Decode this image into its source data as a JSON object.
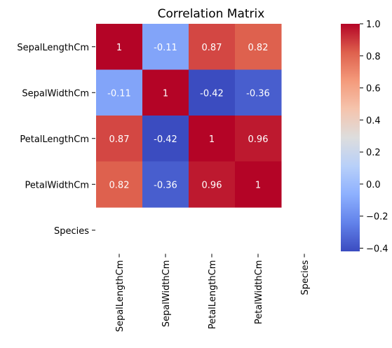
{
  "chart_data": {
    "type": "heatmap",
    "title": "Correlation Matrix",
    "rows": [
      "SepalLengthCm",
      "SepalWidthCm",
      "PetalLengthCm",
      "PetalWidthCm",
      "Species"
    ],
    "columns": [
      "SepalLengthCm",
      "SepalWidthCm",
      "PetalLengthCm",
      "PetalWidthCm",
      "Species"
    ],
    "values": [
      [
        1,
        -0.11,
        0.87,
        0.82,
        null
      ],
      [
        -0.11,
        1,
        -0.42,
        -0.36,
        null
      ],
      [
        0.87,
        -0.42,
        1,
        0.96,
        null
      ],
      [
        0.82,
        -0.36,
        0.96,
        1,
        null
      ],
      [
        null,
        null,
        null,
        null,
        null
      ]
    ],
    "annotations": [
      [
        "1",
        "-0.11",
        "0.87",
        "0.82",
        ""
      ],
      [
        "-0.11",
        "1",
        "-0.42",
        "-0.36",
        ""
      ],
      [
        "0.87",
        "-0.42",
        "1",
        "0.96",
        ""
      ],
      [
        "0.82",
        "-0.36",
        "0.96",
        "1",
        ""
      ],
      [
        "",
        "",
        "",
        "",
        ""
      ]
    ],
    "colormap": "coolwarm",
    "colorbar": {
      "range": [
        -0.42,
        1.0
      ],
      "ticks": [
        1.0,
        0.8,
        0.6,
        0.4,
        0.2,
        0.0,
        -0.2,
        -0.4
      ],
      "tick_labels": [
        "1.0",
        "0.8",
        "0.6",
        "0.4",
        "0.2",
        "0.0",
        "−0.2",
        "−0.4"
      ]
    }
  }
}
